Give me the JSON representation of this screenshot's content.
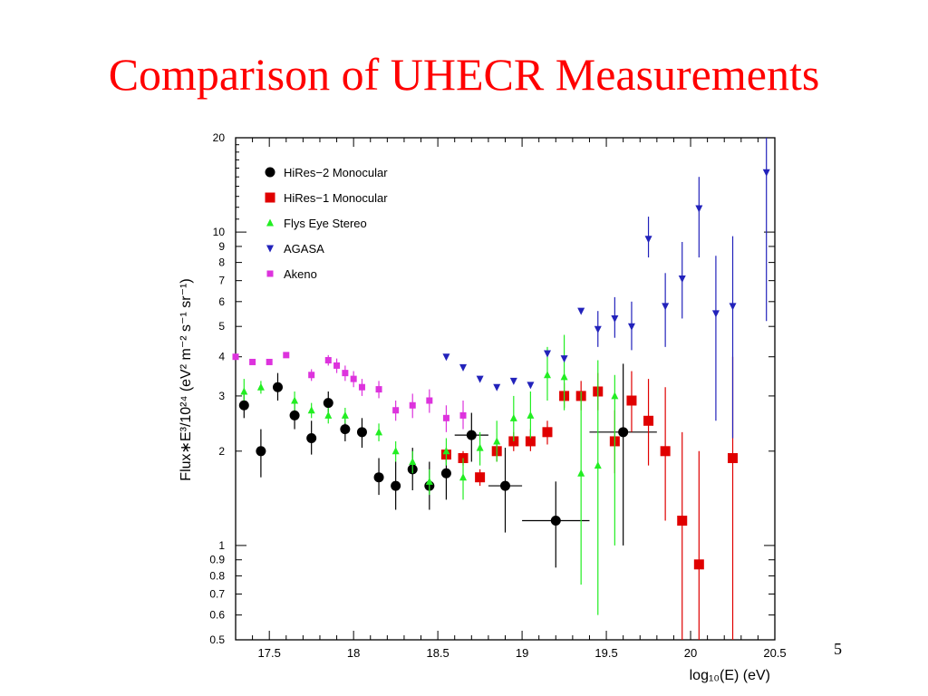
{
  "slide": {
    "title": "Comparison of UHECR Measurements",
    "page_number": "5"
  },
  "chart_data": {
    "type": "scatter",
    "xlabel": "log₁₀(E)  (eV)",
    "ylabel": "Flux∗E³/10²⁴ (eV² m⁻² s⁻¹ sr⁻¹)",
    "xlim": [
      17.3,
      20.5
    ],
    "ylim": [
      0.5,
      20
    ],
    "yscale": "log",
    "x_ticks": [
      17.5,
      18,
      18.5,
      19,
      19.5,
      20,
      20.5
    ],
    "x_tick_labels": [
      "17.5",
      "18",
      "18.5",
      "19",
      "19.5",
      "20",
      "20.5"
    ],
    "y_ticks": [
      0.5,
      0.6,
      0.7,
      0.8,
      0.9,
      1,
      2,
      3,
      4,
      5,
      6,
      7,
      8,
      9,
      10,
      20
    ],
    "y_tick_labels": [
      "0.5",
      "0.6",
      "0.7",
      "0.8",
      "0.9",
      "1",
      "2",
      "3",
      "4",
      "5",
      "6",
      "7",
      "8",
      "9",
      "10",
      "20"
    ],
    "grid": false,
    "legend_position": "top-left",
    "series": [
      {
        "name": "HiRes−2 Monocular",
        "marker": "circle",
        "color": "#000000",
        "points": [
          {
            "x": 17.35,
            "y": 2.8,
            "ylo": 2.55,
            "yhi": 3.05
          },
          {
            "x": 17.45,
            "y": 2.0,
            "ylo": 1.65,
            "yhi": 2.35
          },
          {
            "x": 17.55,
            "y": 3.2,
            "ylo": 2.9,
            "yhi": 3.55
          },
          {
            "x": 17.65,
            "y": 2.6,
            "ylo": 2.35,
            "yhi": 2.95
          },
          {
            "x": 17.75,
            "y": 2.2,
            "ylo": 1.95,
            "yhi": 2.5
          },
          {
            "x": 17.85,
            "y": 2.85,
            "ylo": 2.6,
            "yhi": 3.1
          },
          {
            "x": 17.95,
            "y": 2.35,
            "ylo": 2.15,
            "yhi": 2.6
          },
          {
            "x": 18.05,
            "y": 2.3,
            "ylo": 2.05,
            "yhi": 2.55
          },
          {
            "x": 18.15,
            "y": 1.65,
            "ylo": 1.45,
            "yhi": 1.9
          },
          {
            "x": 18.25,
            "y": 1.55,
            "ylo": 1.3,
            "yhi": 1.85
          },
          {
            "x": 18.35,
            "y": 1.75,
            "ylo": 1.5,
            "yhi": 2.05
          },
          {
            "x": 18.45,
            "y": 1.55,
            "ylo": 1.3,
            "yhi": 1.85
          },
          {
            "x": 18.55,
            "y": 1.7,
            "ylo": 1.4,
            "yhi": 2.05
          },
          {
            "x": 18.7,
            "y": 2.25,
            "ylo": 1.85,
            "yhi": 2.65,
            "xlo": 18.6,
            "xhi": 18.8
          },
          {
            "x": 18.9,
            "y": 1.55,
            "ylo": 1.1,
            "yhi": 2.05,
            "xlo": 18.8,
            "xhi": 19.0
          },
          {
            "x": 19.2,
            "y": 1.2,
            "ylo": 0.85,
            "yhi": 1.6,
            "xlo": 19.0,
            "xhi": 19.4
          },
          {
            "x": 19.6,
            "y": 2.3,
            "ylo": 1.0,
            "yhi": 3.8,
            "xlo": 19.4,
            "xhi": 19.8
          }
        ]
      },
      {
        "name": "HiRes−1 Monocular",
        "marker": "square",
        "color": "#e00000",
        "points": [
          {
            "x": 18.55,
            "y": 1.95,
            "ylo": 1.85,
            "yhi": 2.05
          },
          {
            "x": 18.65,
            "y": 1.9,
            "ylo": 1.8,
            "yhi": 2.0
          },
          {
            "x": 18.75,
            "y": 1.65,
            "ylo": 1.55,
            "yhi": 1.75
          },
          {
            "x": 18.85,
            "y": 2.0,
            "ylo": 1.85,
            "yhi": 2.15
          },
          {
            "x": 18.95,
            "y": 2.15,
            "ylo": 2.0,
            "yhi": 2.3
          },
          {
            "x": 19.05,
            "y": 2.15,
            "ylo": 2.0,
            "yhi": 2.35
          },
          {
            "x": 19.15,
            "y": 2.3,
            "ylo": 2.1,
            "yhi": 2.5
          },
          {
            "x": 19.25,
            "y": 3.0,
            "ylo": 2.75,
            "yhi": 3.3
          },
          {
            "x": 19.35,
            "y": 3.0,
            "ylo": 2.7,
            "yhi": 3.35
          },
          {
            "x": 19.45,
            "y": 3.1,
            "ylo": 2.7,
            "yhi": 3.55
          },
          {
            "x": 19.55,
            "y": 2.15,
            "ylo": 1.7,
            "yhi": 2.7
          },
          {
            "x": 19.65,
            "y": 2.9,
            "ylo": 2.3,
            "yhi": 3.6
          },
          {
            "x": 19.75,
            "y": 2.5,
            "ylo": 1.8,
            "yhi": 3.4
          },
          {
            "x": 19.85,
            "y": 2.0,
            "ylo": 1.2,
            "yhi": 3.2
          },
          {
            "x": 19.95,
            "y": 1.2,
            "ylo": 0.5,
            "yhi": 2.3
          },
          {
            "x": 20.05,
            "y": 0.87,
            "ylo": 0.5,
            "yhi": 2.0
          },
          {
            "x": 20.25,
            "y": 1.9,
            "ylo": 0.5,
            "yhi": 4.0
          }
        ]
      },
      {
        "name": "Flys Eye Stereo",
        "marker": "triangle-up",
        "color": "#22ee22",
        "points": [
          {
            "x": 17.35,
            "y": 3.1,
            "ylo": 2.9,
            "yhi": 3.4
          },
          {
            "x": 17.45,
            "y": 3.2,
            "ylo": 3.05,
            "yhi": 3.35
          },
          {
            "x": 17.65,
            "y": 2.9,
            "ylo": 2.7,
            "yhi": 3.1
          },
          {
            "x": 17.75,
            "y": 2.7,
            "ylo": 2.55,
            "yhi": 2.85
          },
          {
            "x": 17.85,
            "y": 2.6,
            "ylo": 2.45,
            "yhi": 2.75
          },
          {
            "x": 17.95,
            "y": 2.6,
            "ylo": 2.45,
            "yhi": 2.75
          },
          {
            "x": 18.15,
            "y": 2.3,
            "ylo": 2.15,
            "yhi": 2.45
          },
          {
            "x": 18.25,
            "y": 2.0,
            "ylo": 1.85,
            "yhi": 2.15
          },
          {
            "x": 18.35,
            "y": 1.85,
            "ylo": 1.7,
            "yhi": 2.0
          },
          {
            "x": 18.45,
            "y": 1.6,
            "ylo": 1.45,
            "yhi": 1.75
          },
          {
            "x": 18.55,
            "y": 2.0,
            "ylo": 1.8,
            "yhi": 2.2
          },
          {
            "x": 18.65,
            "y": 1.65,
            "ylo": 1.4,
            "yhi": 1.9
          },
          {
            "x": 18.75,
            "y": 2.05,
            "ylo": 1.8,
            "yhi": 2.3
          },
          {
            "x": 18.85,
            "y": 2.15,
            "ylo": 1.85,
            "yhi": 2.5
          },
          {
            "x": 18.95,
            "y": 2.55,
            "ylo": 2.15,
            "yhi": 3.0
          },
          {
            "x": 19.05,
            "y": 2.6,
            "ylo": 2.2,
            "yhi": 3.1
          },
          {
            "x": 19.15,
            "y": 3.5,
            "ylo": 2.9,
            "yhi": 4.3
          },
          {
            "x": 19.25,
            "y": 3.45,
            "ylo": 2.7,
            "yhi": 4.7
          },
          {
            "x": 19.35,
            "y": 1.7,
            "ylo": 0.75,
            "yhi": 3.1
          },
          {
            "x": 19.45,
            "y": 1.8,
            "ylo": 0.6,
            "yhi": 3.9
          },
          {
            "x": 19.55,
            "y": 3.0,
            "ylo": 1.0,
            "yhi": 3.5
          }
        ]
      },
      {
        "name": "AGASA",
        "marker": "triangle-down",
        "color": "#2222bb",
        "points": [
          {
            "x": 18.55,
            "y": 4.0
          },
          {
            "x": 18.65,
            "y": 3.7
          },
          {
            "x": 18.75,
            "y": 3.4
          },
          {
            "x": 18.85,
            "y": 3.2
          },
          {
            "x": 18.95,
            "y": 3.35
          },
          {
            "x": 19.05,
            "y": 3.25
          },
          {
            "x": 19.15,
            "y": 4.1
          },
          {
            "x": 19.25,
            "y": 3.95
          },
          {
            "x": 19.35,
            "y": 5.6
          },
          {
            "x": 19.45,
            "y": 4.9,
            "ylo": 4.3,
            "yhi": 5.6
          },
          {
            "x": 19.55,
            "y": 5.3,
            "ylo": 4.6,
            "yhi": 6.2
          },
          {
            "x": 19.65,
            "y": 5.0,
            "ylo": 4.2,
            "yhi": 6.0
          },
          {
            "x": 19.75,
            "y": 9.5,
            "ylo": 8.3,
            "yhi": 11.2
          },
          {
            "x": 19.85,
            "y": 5.8,
            "ylo": 4.3,
            "yhi": 7.4
          },
          {
            "x": 19.95,
            "y": 7.1,
            "ylo": 5.3,
            "yhi": 9.3
          },
          {
            "x": 20.05,
            "y": 11.9,
            "ylo": 8.3,
            "yhi": 15.0
          },
          {
            "x": 20.15,
            "y": 5.5,
            "ylo": 2.5,
            "yhi": 8.4
          },
          {
            "x": 20.25,
            "y": 5.8,
            "ylo": 2.2,
            "yhi": 9.7
          },
          {
            "x": 20.45,
            "y": 15.5,
            "ylo": 5.2,
            "yhi": 20
          }
        ]
      },
      {
        "name": "Akeno",
        "marker": "square-small",
        "color": "#dd33dd",
        "points": [
          {
            "x": 17.3,
            "y": 4.0
          },
          {
            "x": 17.4,
            "y": 3.85
          },
          {
            "x": 17.5,
            "y": 3.85
          },
          {
            "x": 17.6,
            "y": 4.05
          },
          {
            "x": 17.75,
            "y": 3.5,
            "ylo": 3.35,
            "yhi": 3.65
          },
          {
            "x": 17.85,
            "y": 3.9,
            "ylo": 3.75,
            "yhi": 4.05
          },
          {
            "x": 17.9,
            "y": 3.75,
            "ylo": 3.55,
            "yhi": 3.95
          },
          {
            "x": 17.95,
            "y": 3.55,
            "ylo": 3.35,
            "yhi": 3.75
          },
          {
            "x": 18.0,
            "y": 3.4,
            "ylo": 3.2,
            "yhi": 3.6
          },
          {
            "x": 18.05,
            "y": 3.2,
            "ylo": 3.0,
            "yhi": 3.4
          },
          {
            "x": 18.15,
            "y": 3.15,
            "ylo": 2.95,
            "yhi": 3.35
          },
          {
            "x": 18.25,
            "y": 2.7,
            "ylo": 2.5,
            "yhi": 2.9
          },
          {
            "x": 18.35,
            "y": 2.8,
            "ylo": 2.55,
            "yhi": 3.05
          },
          {
            "x": 18.45,
            "y": 2.9,
            "ylo": 2.65,
            "yhi": 3.15
          },
          {
            "x": 18.55,
            "y": 2.55,
            "ylo": 2.3,
            "yhi": 2.8
          },
          {
            "x": 18.65,
            "y": 2.6,
            "ylo": 2.35,
            "yhi": 2.9
          }
        ]
      }
    ]
  }
}
